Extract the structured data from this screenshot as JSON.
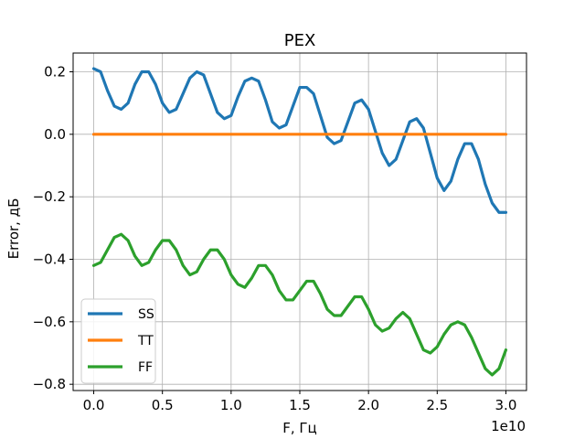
{
  "chart_data": {
    "type": "line",
    "title": "PEX",
    "xlabel": "F, Гц",
    "ylabel": "Error, дБ",
    "x_offset_label": "1e10",
    "xlim": [
      -0.15,
      3.15
    ],
    "ylim": [
      -0.82,
      0.26
    ],
    "x_scale_factor": 10000000000,
    "xticks": [
      0.0,
      0.5,
      1.0,
      1.5,
      2.0,
      2.5,
      3.0
    ],
    "xtick_labels": [
      "0.0",
      "0.5",
      "1.0",
      "1.5",
      "2.0",
      "2.5",
      "3.0"
    ],
    "yticks": [
      0.2,
      0.0,
      -0.2,
      -0.4,
      -0.6,
      -0.8
    ],
    "ytick_labels": [
      "0.2",
      "0.0",
      "−0.2",
      "−0.4",
      "−0.6",
      "−0.8"
    ],
    "grid": true,
    "legend_position": "lower-left",
    "x": [
      0.0,
      0.05,
      0.1,
      0.15,
      0.2,
      0.25,
      0.3,
      0.35,
      0.4,
      0.45,
      0.5,
      0.55,
      0.6,
      0.65,
      0.7,
      0.75,
      0.8,
      0.85,
      0.9,
      0.95,
      1.0,
      1.05,
      1.1,
      1.15,
      1.2,
      1.25,
      1.3,
      1.35,
      1.4,
      1.45,
      1.5,
      1.55,
      1.6,
      1.65,
      1.7,
      1.75,
      1.8,
      1.85,
      1.9,
      1.95,
      2.0,
      2.05,
      2.1,
      2.15,
      2.2,
      2.25,
      2.3,
      2.35,
      2.4,
      2.45,
      2.5,
      2.55,
      2.6,
      2.65,
      2.7,
      2.75,
      2.8,
      2.85,
      2.9,
      2.95,
      3.0
    ],
    "series": [
      {
        "name": "SS",
        "color": "#1f77b4",
        "values": [
          0.21,
          0.2,
          0.14,
          0.09,
          0.08,
          0.1,
          0.16,
          0.2,
          0.2,
          0.16,
          0.1,
          0.07,
          0.08,
          0.13,
          0.18,
          0.2,
          0.19,
          0.13,
          0.07,
          0.05,
          0.06,
          0.12,
          0.17,
          0.18,
          0.17,
          0.11,
          0.04,
          0.02,
          0.03,
          0.09,
          0.15,
          0.15,
          0.13,
          0.06,
          -0.01,
          -0.03,
          -0.02,
          0.04,
          0.1,
          0.11,
          0.08,
          0.01,
          -0.06,
          -0.1,
          -0.08,
          -0.02,
          0.04,
          0.05,
          0.02,
          -0.06,
          -0.14,
          -0.18,
          -0.15,
          -0.08,
          -0.03,
          -0.03,
          -0.08,
          -0.16,
          -0.22,
          -0.25,
          -0.25
        ]
      },
      {
        "name": "TT",
        "color": "#ff7f0e",
        "values": [
          0.0,
          0.0,
          0.0,
          0.0,
          0.0,
          0.0,
          0.0,
          0.0,
          0.0,
          0.0,
          0.0,
          0.0,
          0.0,
          0.0,
          0.0,
          0.0,
          0.0,
          0.0,
          0.0,
          0.0,
          0.0,
          0.0,
          0.0,
          0.0,
          0.0,
          0.0,
          0.0,
          0.0,
          0.0,
          0.0,
          0.0,
          0.0,
          0.0,
          0.0,
          0.0,
          0.0,
          0.0,
          0.0,
          0.0,
          0.0,
          0.0,
          0.0,
          0.0,
          0.0,
          0.0,
          0.0,
          0.0,
          0.0,
          0.0,
          0.0,
          0.0,
          0.0,
          0.0,
          0.0,
          0.0,
          0.0,
          0.0,
          0.0,
          0.0,
          0.0,
          0.0
        ]
      },
      {
        "name": "FF",
        "color": "#2ca02c",
        "values": [
          -0.42,
          -0.41,
          -0.37,
          -0.33,
          -0.32,
          -0.34,
          -0.39,
          -0.42,
          -0.41,
          -0.37,
          -0.34,
          -0.34,
          -0.37,
          -0.42,
          -0.45,
          -0.44,
          -0.4,
          -0.37,
          -0.37,
          -0.4,
          -0.45,
          -0.48,
          -0.49,
          -0.46,
          -0.42,
          -0.42,
          -0.45,
          -0.5,
          -0.53,
          -0.53,
          -0.5,
          -0.47,
          -0.47,
          -0.51,
          -0.56,
          -0.58,
          -0.58,
          -0.55,
          -0.52,
          -0.52,
          -0.56,
          -0.61,
          -0.63,
          -0.62,
          -0.59,
          -0.57,
          -0.59,
          -0.64,
          -0.69,
          -0.7,
          -0.68,
          -0.64,
          -0.61,
          -0.6,
          -0.61,
          -0.65,
          -0.7,
          -0.75,
          -0.77,
          -0.75,
          -0.69
        ]
      }
    ]
  }
}
